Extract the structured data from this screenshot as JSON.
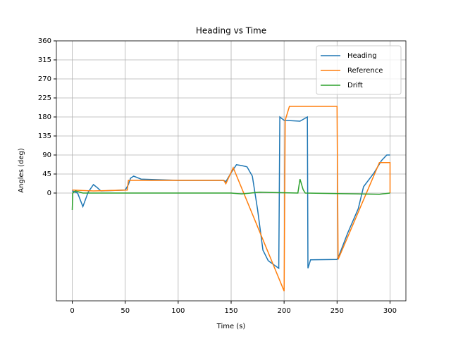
{
  "chart_data": {
    "type": "line",
    "title": "Heading vs Time",
    "xlabel": "Time (s)",
    "ylabel": "Angles (deg)",
    "xlim": [
      -15,
      315
    ],
    "ylim": [
      -255,
      360
    ],
    "xticks": [
      0,
      50,
      100,
      150,
      200,
      250,
      300
    ],
    "yticks": [
      0,
      45,
      90,
      135,
      180,
      225,
      270,
      315,
      360
    ],
    "grid": true,
    "legend": "upper right",
    "series": [
      {
        "name": "Heading",
        "color": "#1f77b4",
        "x": [
          0,
          5,
          10,
          15,
          20,
          24,
          27,
          50,
          53,
          55,
          58,
          65,
          100,
          143,
          145,
          150,
          155,
          160,
          165,
          170,
          175,
          180,
          185,
          195,
          196,
          200,
          215,
          222,
          222.5,
          225,
          250,
          252,
          260,
          270,
          275,
          285,
          292,
          297,
          300
        ],
        "values": [
          5,
          0,
          -32,
          2,
          20,
          12,
          5,
          7,
          20,
          35,
          40,
          33,
          30,
          30,
          27,
          48,
          67,
          65,
          62,
          40,
          -40,
          -135,
          -160,
          -178,
          180,
          172,
          170,
          180,
          -178,
          -158,
          -157,
          -147,
          -95,
          -37,
          15,
          48,
          77,
          90,
          90
        ]
      },
      {
        "name": "Reference",
        "color": "#ff7f0e",
        "x": [
          0,
          20,
          52,
          53,
          143,
          145,
          152,
          200,
          201,
          205,
          250,
          251,
          290,
          300,
          300
        ],
        "values": [
          7,
          5,
          7,
          30,
          30,
          22,
          60,
          -232,
          172,
          205,
          205,
          -157,
          72,
          72,
          0
        ]
      },
      {
        "name": "Drift",
        "color": "#2ca02c",
        "x": [
          0,
          0.5,
          3,
          10,
          150,
          160,
          177,
          213,
          215,
          218,
          220,
          290,
          300
        ],
        "values": [
          -40,
          0,
          5,
          0,
          0,
          -2,
          2,
          0,
          33,
          8,
          0,
          -3,
          0
        ]
      }
    ]
  }
}
